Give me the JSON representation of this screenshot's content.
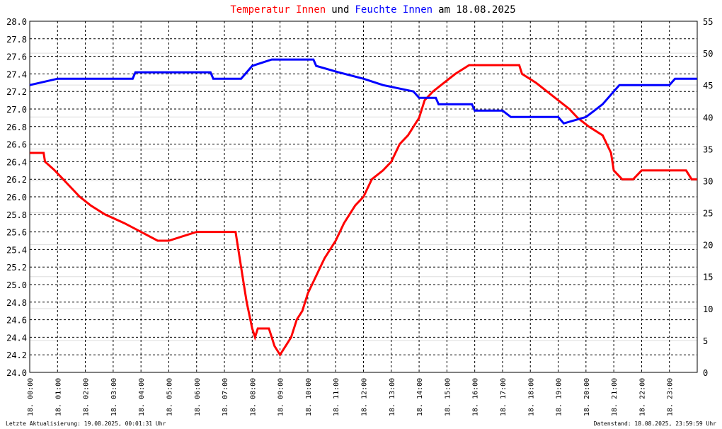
{
  "chart_data": {
    "type": "line",
    "title_joiner": "und",
    "title_suffix": "am 18.08.2025",
    "footer_left": "Letzte Aktualisierung: 19.08.2025, 00:01:31 Uhr",
    "footer_right": "Datenstand: 18.08.2025, 23:59:59 Uhr",
    "xlim": [
      0,
      24
    ],
    "xticks": [
      {
        "value": 0,
        "label": "18. 00:00"
      },
      {
        "value": 1,
        "label": "18. 01:00"
      },
      {
        "value": 2,
        "label": "18. 02:00"
      },
      {
        "value": 3,
        "label": "18. 03:00"
      },
      {
        "value": 4,
        "label": "18. 04:00"
      },
      {
        "value": 5,
        "label": "18. 05:00"
      },
      {
        "value": 6,
        "label": "18. 06:00"
      },
      {
        "value": 7,
        "label": "18. 07:00"
      },
      {
        "value": 8,
        "label": "18. 08:00"
      },
      {
        "value": 9,
        "label": "18. 09:00"
      },
      {
        "value": 10,
        "label": "18. 10:00"
      },
      {
        "value": 11,
        "label": "18. 11:00"
      },
      {
        "value": 12,
        "label": "18. 12:00"
      },
      {
        "value": 13,
        "label": "18. 13:00"
      },
      {
        "value": 14,
        "label": "18. 14:00"
      },
      {
        "value": 15,
        "label": "18. 15:00"
      },
      {
        "value": 16,
        "label": "18. 16:00"
      },
      {
        "value": 17,
        "label": "18. 17:00"
      },
      {
        "value": 18,
        "label": "18. 18:00"
      },
      {
        "value": 19,
        "label": "18. 19:00"
      },
      {
        "value": 20,
        "label": "18. 20:00"
      },
      {
        "value": 21,
        "label": "18. 21:00"
      },
      {
        "value": 22,
        "label": "18. 22:00"
      },
      {
        "value": 23,
        "label": "18. 23:00"
      }
    ],
    "ylim": [
      24,
      28
    ],
    "yticks": [
      {
        "value": 24,
        "label": "24.0"
      },
      24.2,
      24.4,
      24.6,
      24.8,
      {
        "value": 25,
        "label": "25.0"
      },
      25.2,
      25.4,
      25.6,
      25.8,
      {
        "value": 26,
        "label": "26.0"
      },
      26.2,
      26.4,
      26.6,
      26.8,
      {
        "value": 27,
        "label": "27.0"
      },
      27.2,
      27.4,
      27.6,
      27.8,
      {
        "value": 28,
        "label": "28.0"
      }
    ],
    "y2lim": [
      0,
      55
    ],
    "y2ticks": [
      0,
      5,
      10,
      15,
      20,
      25,
      30,
      35,
      40,
      45,
      50,
      55
    ],
    "grid": true,
    "series": [
      {
        "name": "Temperatur Innen",
        "color": "#ff0000",
        "axis": "y",
        "x": [
          0,
          0.5,
          0.55,
          0.9,
          1.2,
          1.5,
          1.8,
          2.2,
          2.7,
          3.4,
          4.0,
          4.6,
          5.0,
          6.0,
          6.5,
          7.4,
          7.5,
          7.7,
          7.8,
          8.0,
          8.1,
          8.2,
          8.6,
          8.8,
          9.0,
          9.2,
          9.4,
          9.6,
          9.8,
          10.0,
          10.3,
          10.6,
          11.0,
          11.3,
          11.7,
          12.0,
          12.3,
          12.7,
          13.0,
          13.3,
          13.6,
          14.0,
          14.2,
          14.5,
          14.9,
          15.3,
          15.8,
          17.6,
          17.7,
          18.2,
          18.6,
          19.0,
          19.4,
          19.7,
          20.1,
          20.6,
          20.9,
          21.0,
          21.3,
          21.7,
          22.0,
          23.6,
          23.8,
          24.0
        ],
        "values": [
          26.5,
          26.5,
          26.4,
          26.3,
          26.2,
          26.1,
          26.0,
          25.9,
          25.8,
          25.7,
          25.6,
          25.5,
          25.5,
          25.6,
          25.6,
          25.6,
          25.4,
          25.0,
          24.8,
          24.5,
          24.4,
          24.5,
          24.5,
          24.3,
          24.2,
          24.3,
          24.4,
          24.6,
          24.7,
          24.9,
          25.1,
          25.3,
          25.5,
          25.7,
          25.9,
          26.0,
          26.2,
          26.3,
          26.4,
          26.6,
          26.7,
          26.9,
          27.1,
          27.2,
          27.3,
          27.4,
          27.5,
          27.5,
          27.4,
          27.3,
          27.2,
          27.1,
          27.0,
          26.9,
          26.8,
          26.7,
          26.5,
          26.3,
          26.2,
          26.2,
          26.3,
          26.3,
          26.2,
          26.2
        ]
      },
      {
        "name": "Feuchte Innen",
        "color": "#0000ff",
        "axis": "y2",
        "x": [
          0,
          1.0,
          3.7,
          3.8,
          6.5,
          6.6,
          7.6,
          7.8,
          8.0,
          8.7,
          10.2,
          10.3,
          11.1,
          12.0,
          12.7,
          13.8,
          14.0,
          14.6,
          14.7,
          15.9,
          16.0,
          17.0,
          17.3,
          18.3,
          19.0,
          19.2,
          20.0,
          20.3,
          20.6,
          21.0,
          21.2,
          23.0,
          23.2,
          24.0
        ],
        "values": [
          45,
          46,
          46,
          47,
          47,
          46,
          46,
          47,
          48,
          49,
          49,
          48,
          47,
          46,
          45,
          44,
          43,
          43,
          42,
          42,
          41,
          41,
          40,
          40,
          40,
          39,
          40,
          41,
          42,
          44,
          45,
          45,
          46,
          46
        ]
      }
    ]
  }
}
